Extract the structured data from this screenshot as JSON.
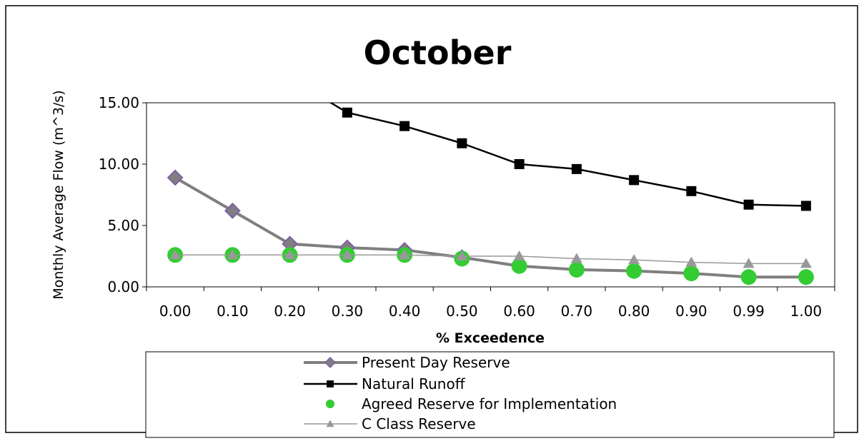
{
  "chart_data": {
    "type": "line",
    "title": "October",
    "x_label": "% Exceedence",
    "y_label": "Monthly Average Flow (m^3/s)",
    "categories": [
      "0.00",
      "0.10",
      "0.20",
      "0.30",
      "0.40",
      "0.50",
      "0.60",
      "0.70",
      "0.80",
      "0.90",
      "0.99",
      "1.00"
    ],
    "ylim": [
      0,
      15
    ],
    "yticks": [
      {
        "value": 0,
        "label": "0.00"
      },
      {
        "value": 5,
        "label": "5.00"
      },
      {
        "value": 10,
        "label": "10.00"
      },
      {
        "value": 15,
        "label": "15.00"
      }
    ],
    "series": [
      {
        "name": "Present Day Reserve",
        "color": "#7f7f7f",
        "marker": "diamond",
        "values": [
          8.9,
          6.2,
          3.5,
          3.2,
          3.0,
          2.4,
          1.7,
          1.4,
          1.3,
          1.1,
          0.8,
          0.8
        ]
      },
      {
        "name": "Natural Runoff",
        "color": "#000000",
        "marker": "square",
        "values": [
          null,
          null,
          17,
          14.2,
          13.1,
          11.7,
          10.0,
          9.6,
          8.7,
          7.8,
          6.7,
          6.6
        ]
      },
      {
        "name": "Agreed Reserve for Implementation",
        "color": "#33cc33",
        "marker": "circle",
        "values": [
          2.6,
          2.6,
          2.6,
          2.6,
          2.6,
          2.3,
          1.7,
          1.4,
          1.3,
          1.1,
          0.8,
          0.8
        ]
      },
      {
        "name": "C Class Reserve",
        "color": "#999999",
        "marker": "triangle",
        "values": [
          2.6,
          2.6,
          2.6,
          2.6,
          2.6,
          2.5,
          2.5,
          2.3,
          2.2,
          2.0,
          1.9,
          1.9
        ]
      }
    ]
  }
}
